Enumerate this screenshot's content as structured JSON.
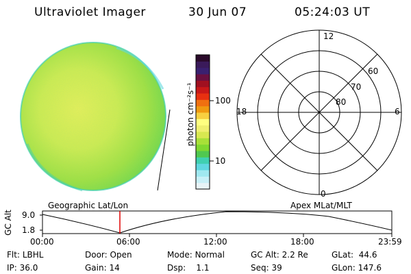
{
  "header": {
    "title": "Ultraviolet Imager",
    "date": "30 Jun 07",
    "time": "05:24:03 UT"
  },
  "colorbar": {
    "unit_label": "photon cm⁻²s⁻¹",
    "tick_100": "100",
    "tick_10": "10",
    "colors": [
      "#2a0a2a",
      "#3a1a5a",
      "#3a2070",
      "#6a1040",
      "#a01020",
      "#c81818",
      "#e83010",
      "#f07010",
      "#f09a10",
      "#f8d040",
      "#ffff80",
      "#f0f070",
      "#d8e850",
      "#a8e038",
      "#80d830",
      "#50c850",
      "#40d0b0",
      "#60d8e0",
      "#a0e8f0",
      "#c8f0f8",
      "#e8f4f8"
    ]
  },
  "polar": {
    "label_top": "12",
    "label_left": "18",
    "label_right": "6",
    "label_bottom": "0",
    "lat_labels": [
      "60",
      "70",
      "80"
    ]
  },
  "timeline": {
    "left_label": "Geographic Lat/Lon",
    "right_label": "Apex MLat/MLT",
    "axis_label": "GC Alt",
    "y_top": "9.0",
    "y_bottom": "1.8",
    "ticks": [
      "00:00",
      "06:00",
      "12:00",
      "18:00",
      "23:59"
    ],
    "marker_color": "#e00000"
  },
  "info": {
    "filter_label": "Flt:",
    "filter_value": "LBHL",
    "ip_label": "IP:",
    "ip_value": "36.0",
    "door_label": "Door:",
    "door_value": "Open",
    "gain_label": "Gain:",
    "gain_value": "14",
    "mode_label": "Mode:",
    "mode_value": "Normal",
    "dsp_label": "Dsp:",
    "dsp_value": "1.1",
    "gcalt_label": "GC Alt:",
    "gcalt_value": "2.2 Re",
    "seq_label": "Seq:",
    "seq_value": "39",
    "glat_label": "GLat:",
    "glat_value": "44.6",
    "glon_label": "GLon:",
    "glon_value": "147.6"
  }
}
